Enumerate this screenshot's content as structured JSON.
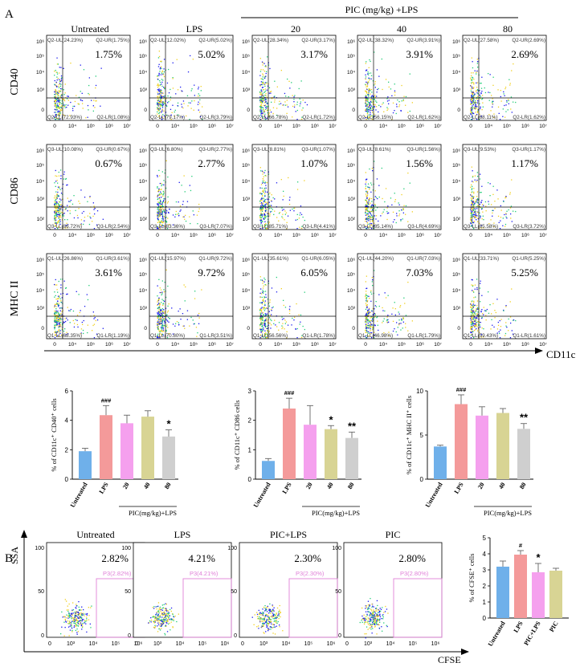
{
  "panel_a": {
    "label": "A",
    "columns": [
      "Untreated",
      "LPS",
      "20",
      "40",
      "80"
    ],
    "pic_header": "PIC (mg/kg) +LPS",
    "x_axis_label": "CD11c",
    "x_ticks": [
      "0",
      "10⁴",
      "10⁵",
      "10⁶",
      "10⁷"
    ],
    "rows": [
      {
        "marker": "CD40",
        "y_ticks": [
          "0",
          "10³",
          "10⁴",
          "10⁵",
          "10⁶"
        ],
        "plots": [
          {
            "big": "1.75%",
            "ul": "Q2-UL(24.23%)",
            "ur": "Q2-UR(1.75%)",
            "ll": "Q2-LL(72.93%)",
            "lr": "Q2-LR(1.08%)"
          },
          {
            "big": "5.02%",
            "ul": "Q2-UL(12.02%)",
            "ur": "Q2-UR(5.02%)",
            "ll": "Q2-LL(79.17%)",
            "lr": "Q2-LR(3.79%)"
          },
          {
            "big": "3.17%",
            "ul": "Q2-UL(28.34%)",
            "ur": "Q2-UR(3.17%)",
            "ll": "Q2-LL(66.78%)",
            "lr": "Q2-LR(1.72%)"
          },
          {
            "big": "3.91%",
            "ul": "Q2-UL(38.32%)",
            "ur": "Q2-UR(3.91%)",
            "ll": "Q2-LL(56.15%)",
            "lr": "Q2-LR(1.62%)"
          },
          {
            "big": "2.69%",
            "ul": "Q2-UL(27.58%)",
            "ur": "Q2-UR(2.69%)",
            "ll": "Q2-LL(68.11%)",
            "lr": "Q2-LR(1.62%)"
          }
        ]
      },
      {
        "marker": "CD86",
        "y_ticks": [
          "10²",
          "10³",
          "10⁴",
          "10⁵",
          "10⁶"
        ],
        "plots": [
          {
            "big": "0.67%",
            "ul": "Q3-UL(10.08%)",
            "ur": "Q3-UR(0.67%)",
            "ll": "Q3-LL(86.72%)",
            "lr": "Q3-LR(2.54%)"
          },
          {
            "big": "2.77%",
            "ul": "Q3-UL(6.80%)",
            "ur": "Q3-UR(2.77%)",
            "ll": "Q3-LL(83.36%)",
            "lr": "Q3-LR(7.07%)"
          },
          {
            "big": "1.07%",
            "ul": "Q3-UL(8.81%)",
            "ur": "Q3-UR(1.07%)",
            "ll": "Q3-LL(85.71%)",
            "lr": "Q3-LR(4.41%)"
          },
          {
            "big": "1.56%",
            "ul": "Q3-UL(8.61%)",
            "ur": "Q3-UR(1.56%)",
            "ll": "Q3-LL(85.14%)",
            "lr": "Q3-LR(4.69%)"
          },
          {
            "big": "1.17%",
            "ul": "Q3-UL(9.53%)",
            "ur": "Q3-UR(1.17%)",
            "ll": "Q3-LL(85.58%)",
            "lr": "Q3-LR(3.72%)"
          }
        ]
      },
      {
        "marker": "MHC II",
        "y_ticks": [
          "0",
          "10³",
          "10⁴",
          "10⁵",
          "10⁶"
        ],
        "plots": [
          {
            "big": "3.61%",
            "ul": "Q1-UL(26.86%)",
            "ur": "Q1-UR(3.61%)",
            "ll": "Q1-LL(68.35%)",
            "lr": "Q1-LR(1.19%)"
          },
          {
            "big": "9.72%",
            "ul": "Q1-UL(15.97%)",
            "ur": "Q1-UR(9.72%)",
            "ll": "Q1-LL(70.80%)",
            "lr": "Q1-LR(3.51%)"
          },
          {
            "big": "6.05%",
            "ul": "Q1-UL(35.61%)",
            "ur": "Q1-UR(6.05%)",
            "ll": "Q1-LL(56.56%)",
            "lr": "Q1-LR(1.78%)"
          },
          {
            "big": "7.03%",
            "ul": "Q1-UL(44.20%)",
            "ur": "Q1-UR(7.03%)",
            "ll": "Q1-LL(46.98%)",
            "lr": "Q1-LR(1.79%)"
          },
          {
            "big": "5.25%",
            "ul": "Q1-UL(33.71%)",
            "ur": "Q1-UR(5.25%)",
            "ll": "Q1-LL(59.43%)",
            "lr": "Q1-LR(1.61%)"
          }
        ]
      }
    ]
  },
  "panel_b": {
    "label": "B",
    "titles": [
      "Untreated",
      "LPS",
      "PIC+LPS",
      "PIC"
    ],
    "big": [
      "2.82%",
      "4.21%",
      "2.30%",
      "2.80%"
    ],
    "gates": [
      "P3(2.82%)",
      "P3(4.21%)",
      "P3(2.30%)",
      "P3(2.80%)"
    ],
    "y_axis_label": "SSA",
    "x_axis_label": "CFSE",
    "y_ticks": [
      "0",
      "50",
      "100"
    ],
    "x_ticks": [
      "0",
      "10³",
      "10⁴",
      "10⁵",
      "10⁶"
    ]
  },
  "colors": {
    "untreated": "#6fb0ea",
    "lps": "#f49a9a",
    "pic20": "#f5a0ee",
    "pic40": "#d8d494",
    "pic80": "#cfcfcf",
    "gate": "#e080d8",
    "scatter_low": "#1a1aee",
    "scatter_mid": "#22cc77",
    "scatter_high": "#f0d020"
  },
  "chart_data": [
    {
      "type": "bar",
      "ylabel": "% of CD11c⁺ CD40⁺ cells",
      "categories": [
        "Untreated",
        "LPS",
        "20",
        "40",
        "80"
      ],
      "values": [
        1.9,
        4.35,
        3.8,
        4.25,
        2.9
      ],
      "errors": [
        0.2,
        0.65,
        0.55,
        0.4,
        0.45
      ],
      "ylim": [
        0,
        6
      ],
      "yticks": [
        "0",
        "2",
        "4",
        "6"
      ],
      "annotations": [
        "",
        "###",
        "",
        "",
        "*"
      ],
      "group_label": "PIC(mg/kg)+LPS"
    },
    {
      "type": "bar",
      "ylabel": "% of CD11c⁺ CD86 cells",
      "categories": [
        "Untreated",
        "LPS",
        "20",
        "40",
        "80"
      ],
      "values": [
        0.62,
        2.4,
        1.85,
        1.7,
        1.4
      ],
      "errors": [
        0.08,
        0.35,
        0.65,
        0.12,
        0.2
      ],
      "ylim": [
        0,
        3
      ],
      "yticks": [
        "0",
        "1",
        "2",
        "3"
      ],
      "annotations": [
        "",
        "###",
        "",
        "*",
        "**"
      ],
      "group_label": "PIC(mg/kg)+LPS"
    },
    {
      "type": "bar",
      "ylabel": "% of CD11c⁺ MHC II⁺ cells",
      "categories": [
        "Untreated",
        "LPS",
        "20",
        "40",
        "80"
      ],
      "values": [
        3.7,
        8.5,
        7.2,
        7.5,
        5.7
      ],
      "errors": [
        0.15,
        1.05,
        1.0,
        0.5,
        0.6
      ],
      "ylim": [
        0,
        10
      ],
      "yticks": [
        "0",
        "5",
        "10"
      ],
      "annotations": [
        "",
        "###",
        "",
        "",
        "**"
      ],
      "group_label": "PIC(mg/kg)+LPS"
    },
    {
      "type": "bar",
      "ylabel": "% of CFSE⁺ cells",
      "categories": [
        "Untreated",
        "LPS",
        "PIC+LPS",
        "PIC"
      ],
      "values": [
        3.2,
        3.95,
        2.85,
        2.95
      ],
      "errors": [
        0.35,
        0.25,
        0.55,
        0.15
      ],
      "ylim": [
        0,
        5
      ],
      "yticks": [
        "0",
        "1",
        "2",
        "3",
        "4",
        "5"
      ],
      "annotations": [
        "",
        "#",
        "*",
        ""
      ]
    }
  ]
}
